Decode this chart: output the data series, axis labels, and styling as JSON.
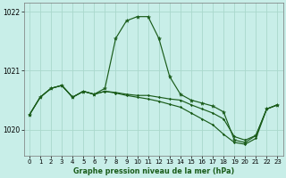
{
  "title": "Graphe pression niveau de la mer (hPa)",
  "bg_color": "#c8eee8",
  "grid_color": "#aad8cc",
  "line_color": "#1a5c1a",
  "xlim": [
    -0.5,
    23.5
  ],
  "ylim": [
    1019.55,
    1022.15
  ],
  "yticks": [
    1020,
    1021,
    1022
  ],
  "xtick_labels": [
    "0",
    "1",
    "2",
    "3",
    "4",
    "5",
    "6",
    "7",
    "8",
    "9",
    "10",
    "11",
    "12",
    "13",
    "14",
    "15",
    "16",
    "17",
    "18",
    "19",
    "20",
    "21",
    "22",
    "23"
  ],
  "series1": [
    1020.25,
    1020.55,
    1020.7,
    1020.75,
    1020.55,
    1020.65,
    1020.6,
    1020.7,
    1021.55,
    1021.85,
    1021.92,
    1021.92,
    1021.55,
    1020.9,
    1020.6,
    1020.5,
    1020.45,
    1020.4,
    1020.3,
    1019.82,
    1019.78,
    1019.9,
    1020.35,
    1020.42
  ],
  "series2": [
    1020.25,
    1020.55,
    1020.7,
    1020.75,
    1020.55,
    1020.65,
    1020.6,
    1020.65,
    1020.63,
    1020.6,
    1020.58,
    1020.58,
    1020.55,
    1020.52,
    1020.5,
    1020.42,
    1020.35,
    1020.28,
    1020.18,
    1019.88,
    1019.82,
    1019.9,
    1020.35,
    1020.42
  ],
  "series3": [
    1020.25,
    1020.55,
    1020.7,
    1020.75,
    1020.55,
    1020.65,
    1020.6,
    1020.65,
    1020.62,
    1020.58,
    1020.55,
    1020.52,
    1020.48,
    1020.43,
    1020.38,
    1020.28,
    1020.18,
    1020.08,
    1019.92,
    1019.78,
    1019.75,
    1019.85,
    1020.35,
    1020.42
  ]
}
